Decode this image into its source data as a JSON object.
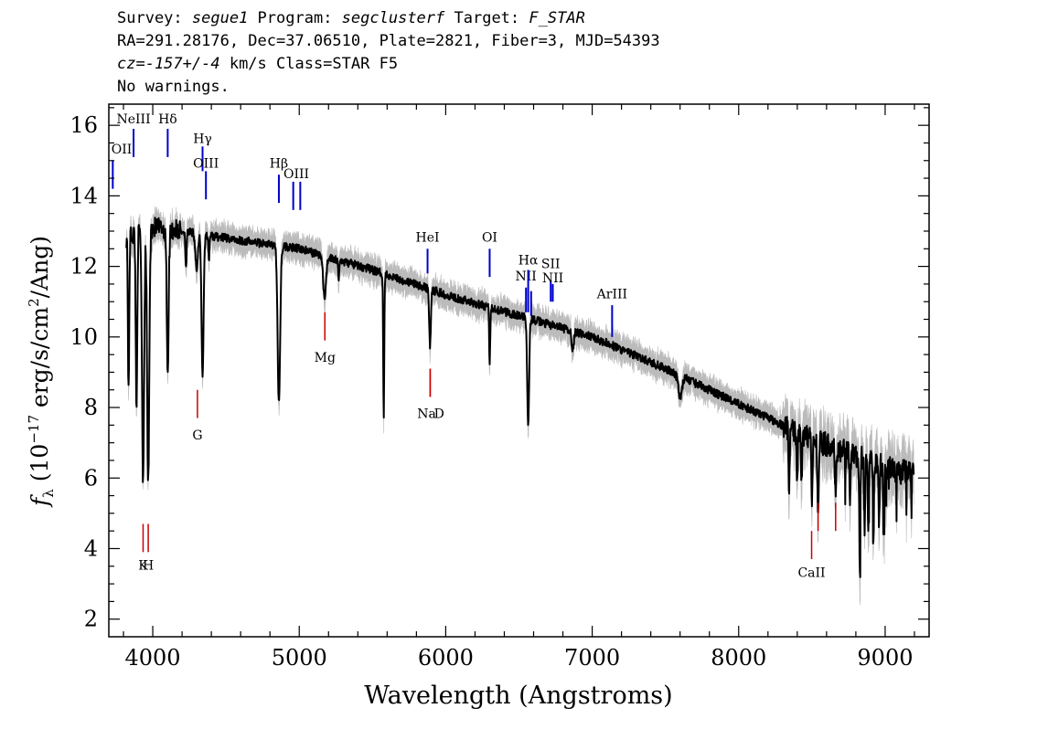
{
  "header": {
    "line1": {
      "survey_label": "Survey: ",
      "survey": "segue1",
      "program_label": " Program: ",
      "program": "segclusterf",
      "target_label": " Target: ",
      "target": "F_STAR"
    },
    "line2": "RA=291.28176, Dec=37.06510, Plate=2821, Fiber=3, MJD=54393",
    "line3": {
      "cz": "cz=-157+/-4",
      "rest": " km/s Class=STAR F5"
    },
    "line4": "No warnings."
  },
  "chart_data": {
    "type": "line",
    "xlabel": "Wavelength (Angstroms)",
    "ylabel": "fλ (10⁻¹⁷ erg/s/cm²/Ang)",
    "xlim": [
      3700,
      9300
    ],
    "ylim": [
      1.5,
      16.6
    ],
    "x_ticks": [
      4000,
      5000,
      6000,
      7000,
      8000,
      9000
    ],
    "y_ticks": [
      2,
      4,
      6,
      8,
      10,
      12,
      14,
      16
    ],
    "colors": {
      "spectrum": "#000000",
      "error": "#bbbbbb",
      "emission": "#0000cc",
      "absorption": "#cc0000"
    },
    "continuum": [
      [
        3800,
        12.8
      ],
      [
        4000,
        13.1
      ],
      [
        4200,
        13.0
      ],
      [
        4500,
        12.8
      ],
      [
        5000,
        12.5
      ],
      [
        5500,
        11.9
      ],
      [
        6000,
        11.2
      ],
      [
        6500,
        10.6
      ],
      [
        7000,
        10.0
      ],
      [
        7500,
        9.1
      ],
      [
        8000,
        8.1
      ],
      [
        8500,
        7.1
      ],
      [
        9000,
        6.3
      ],
      [
        9200,
        6.1
      ]
    ],
    "absorption_features": [
      {
        "x": 3835,
        "depth": 4.5,
        "w": 6
      },
      {
        "x": 3889,
        "depth": 5.0,
        "w": 7
      },
      {
        "x": 3934,
        "depth": 7.0,
        "w": 10
      },
      {
        "x": 3969,
        "depth": 7.3,
        "w": 10
      },
      {
        "x": 4102,
        "depth": 4.0,
        "w": 9
      },
      {
        "x": 4227,
        "depth": 1.0,
        "w": 6
      },
      {
        "x": 4300,
        "depth": 1.0,
        "w": 12
      },
      {
        "x": 4340,
        "depth": 4.0,
        "w": 10
      },
      {
        "x": 4383,
        "depth": 0.7,
        "w": 5
      },
      {
        "x": 4861,
        "depth": 4.5,
        "w": 12
      },
      {
        "x": 5173,
        "depth": 1.2,
        "w": 14
      },
      {
        "x": 5270,
        "depth": 0.5,
        "w": 6
      },
      {
        "x": 5577,
        "depth": 4.0,
        "w": 5
      },
      {
        "x": 5893,
        "depth": 1.6,
        "w": 8
      },
      {
        "x": 6300,
        "depth": 1.6,
        "w": 5
      },
      {
        "x": 6563,
        "depth": 3.0,
        "w": 9
      },
      {
        "x": 6867,
        "depth": 0.5,
        "w": 10
      },
      {
        "x": 7600,
        "depth": 0.6,
        "w": 18
      },
      {
        "x": 8345,
        "depth": 1.8,
        "w": 5
      },
      {
        "x": 8399,
        "depth": 1.4,
        "w": 5
      },
      {
        "x": 8430,
        "depth": 1.3,
        "w": 5
      },
      {
        "x": 8500,
        "depth": 1.6,
        "w": 6
      },
      {
        "x": 8542,
        "depth": 1.8,
        "w": 7
      },
      {
        "x": 8662,
        "depth": 1.4,
        "w": 6
      },
      {
        "x": 8760,
        "depth": 1.5,
        "w": 5
      },
      {
        "x": 8827,
        "depth": 3.0,
        "w": 5
      },
      {
        "x": 8860,
        "depth": 2.0,
        "w": 5
      },
      {
        "x": 8885,
        "depth": 1.8,
        "w": 5
      },
      {
        "x": 8920,
        "depth": 2.2,
        "w": 5
      },
      {
        "x": 8958,
        "depth": 1.8,
        "w": 5
      },
      {
        "x": 8990,
        "depth": 1.3,
        "w": 5
      }
    ],
    "emission_lines": [
      {
        "label": "OII",
        "x": 3727,
        "y1": 14.2,
        "y2": 15.0,
        "lx": 3727,
        "ly": 15.2
      },
      {
        "label": "NeIII",
        "x": 3869,
        "y1": 15.1,
        "y2": 15.9,
        "lx": 3869,
        "ly": 16.05
      },
      {
        "label": "Hδ",
        "x": 4102,
        "y1": 15.1,
        "y2": 15.9,
        "lx": 4102,
        "ly": 16.05
      },
      {
        "label": "Hγ",
        "x": 4340,
        "y1": 14.7,
        "y2": 15.4,
        "lx": 4340,
        "ly": 15.5
      },
      {
        "label": "OIII",
        "x": 4363,
        "y1": 13.9,
        "y2": 14.7,
        "lx": 4363,
        "ly": 14.8
      },
      {
        "label": "Hβ",
        "x": 4861,
        "y1": 13.8,
        "y2": 14.6,
        "lx": 4861,
        "ly": 14.8
      },
      {
        "label": "OIII",
        "x": 4959,
        "y1": 13.6,
        "y2": 14.4,
        "lx": 4980,
        "ly": 14.5
      },
      {
        "label": "OIII",
        "x": 5007,
        "y1": 13.6,
        "y2": 14.4,
        "lx": null,
        "ly": null
      },
      {
        "label": "HeI",
        "x": 5876,
        "y1": 11.8,
        "y2": 12.5,
        "lx": 5876,
        "ly": 12.7
      },
      {
        "label": "OI",
        "x": 6300,
        "y1": 11.7,
        "y2": 12.5,
        "lx": 6300,
        "ly": 12.7
      },
      {
        "label": "NII",
        "x": 6548,
        "y1": 10.7,
        "y2": 11.4,
        "lx": 6548,
        "ly": 11.6
      },
      {
        "label": "Hα",
        "x": 6563,
        "y1": 10.7,
        "y2": 11.9,
        "lx": 6563,
        "ly": 12.05
      },
      {
        "label": "NII",
        "x": 6583,
        "y1": 10.6,
        "y2": 11.3,
        "lx": null,
        "ly": null
      },
      {
        "label": "SII",
        "x": 6717,
        "y1": 11.0,
        "y2": 11.6,
        "lx": 6717,
        "ly": 11.95
      },
      {
        "label": "NII",
        "x": 6731,
        "y1": 11.0,
        "y2": 11.5,
        "lx": 6731,
        "ly": 11.55
      },
      {
        "label": "ArIII",
        "x": 7136,
        "y1": 10.0,
        "y2": 10.9,
        "lx": 7136,
        "ly": 11.1
      }
    ],
    "absorption_lines": [
      {
        "label": "K",
        "x": 3934,
        "y1": 3.9,
        "y2": 4.7,
        "lx": 3934,
        "ly": 3.4
      },
      {
        "label": "H",
        "x": 3969,
        "y1": 3.9,
        "y2": 4.7,
        "lx": 3969,
        "ly": 3.4
      },
      {
        "label": "G",
        "x": 4305,
        "y1": 7.7,
        "y2": 8.5,
        "lx": 4305,
        "ly": 7.1
      },
      {
        "label": "Mg",
        "x": 5175,
        "y1": 9.9,
        "y2": 10.7,
        "lx": 5175,
        "ly": 9.3
      },
      {
        "label": "Na",
        "x": 5894,
        "y1": 8.3,
        "y2": 9.1,
        "lx": 5870,
        "ly": 7.7
      },
      {
        "label": "D",
        "x": 5894,
        "y1": 8.3,
        "y2": 9.1,
        "lx": 5955,
        "ly": 7.7
      },
      {
        "label": "CaII",
        "x": 8498,
        "y1": 3.7,
        "y2": 4.5,
        "lx": 8498,
        "ly": 3.2
      },
      {
        "label": "CaII",
        "x": 8542,
        "y1": 4.5,
        "y2": 5.3,
        "lx": null,
        "ly": null
      },
      {
        "label": "CaII",
        "x": 8662,
        "y1": 4.5,
        "y2": 5.3,
        "lx": null,
        "ly": null
      }
    ]
  }
}
